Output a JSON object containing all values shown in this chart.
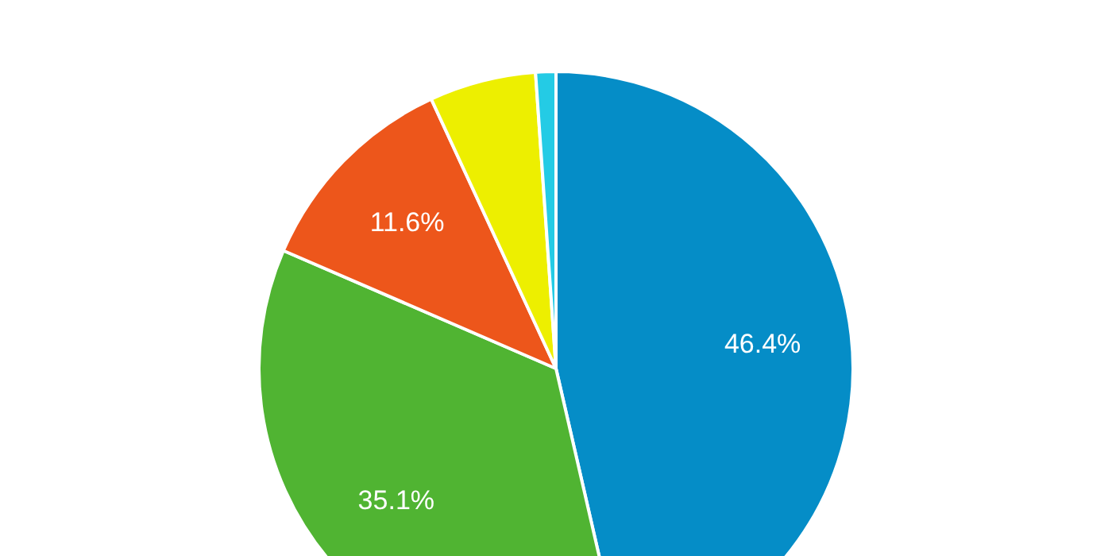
{
  "chart_data": {
    "type": "pie",
    "categories": [
      null,
      null,
      null,
      null,
      null
    ],
    "values": [
      46.4,
      35.1,
      11.6,
      5.8,
      1.1
    ],
    "colors": [
      "#058dc7",
      "#50b432",
      "#ed561b",
      "#edef00",
      "#24cbe5"
    ],
    "value_labels": [
      "46.4%",
      "35.1%",
      "11.6%",
      null,
      null
    ]
  }
}
